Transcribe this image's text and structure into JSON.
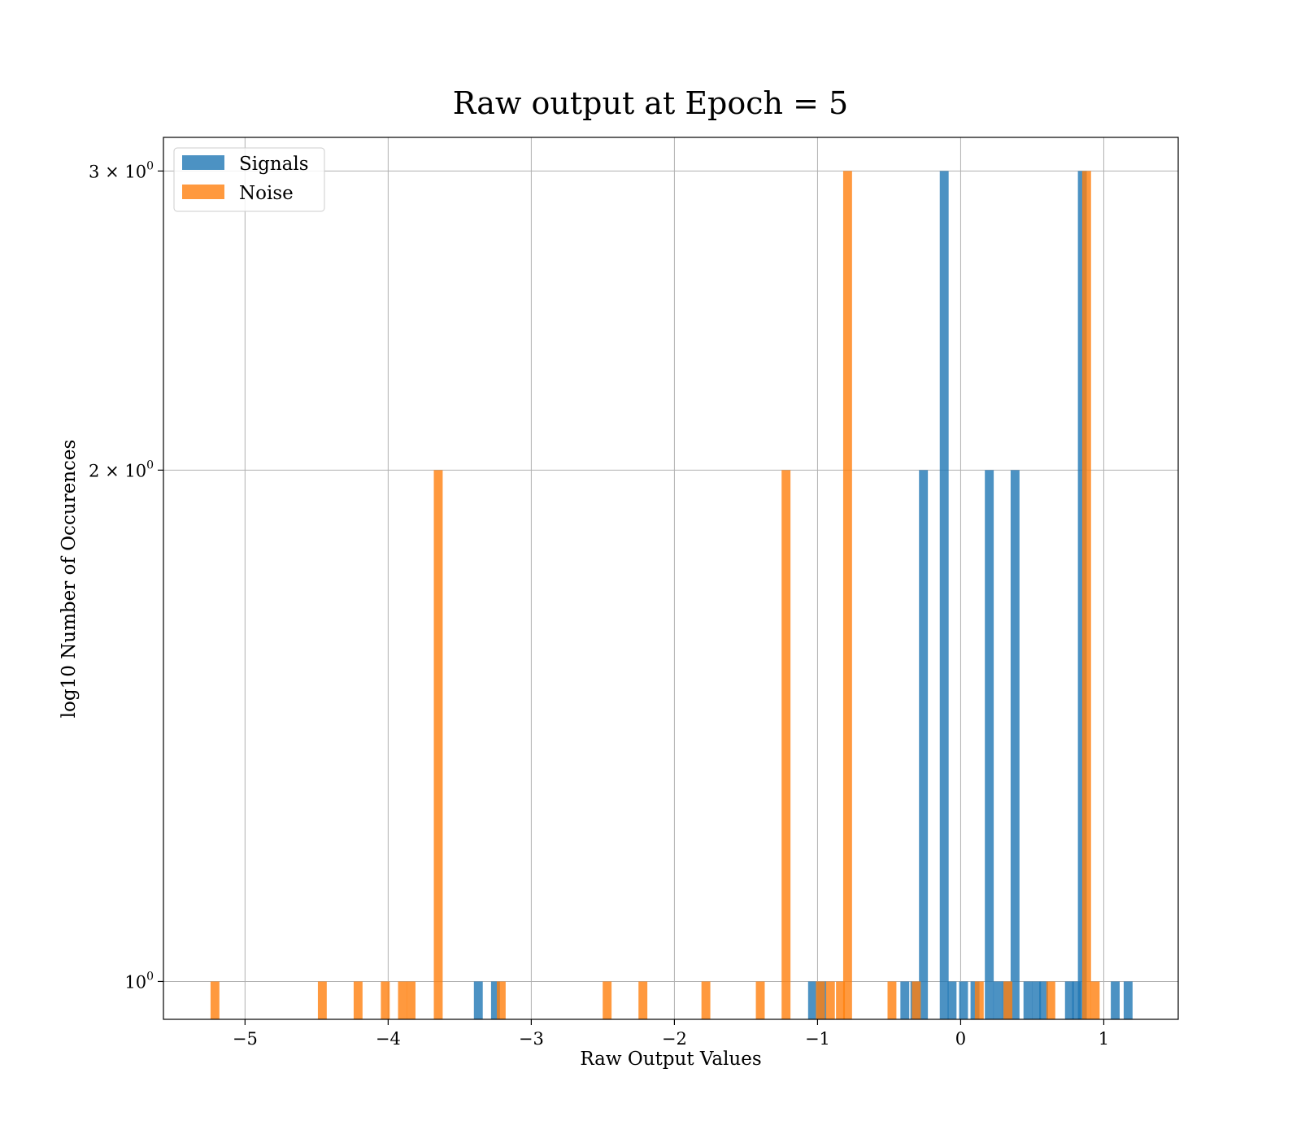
{
  "chart_data": {
    "type": "bar",
    "title": "Raw output at Epoch = 5",
    "xlabel": "Raw Output Values",
    "ylabel": "log10 Number of Occurences",
    "xlim": [
      -5.57,
      1.52
    ],
    "ylim": [
      0.95,
      3.14
    ],
    "y_scale": "log",
    "grid": true,
    "legend_position": "top-left",
    "x_ticks": [
      {
        "value": -5,
        "label": "−5"
      },
      {
        "value": -4,
        "label": "−4"
      },
      {
        "value": -3,
        "label": "−3"
      },
      {
        "value": -2,
        "label": "−2"
      },
      {
        "value": -1,
        "label": "−1"
      },
      {
        "value": 0,
        "label": "0"
      },
      {
        "value": 1,
        "label": "1"
      }
    ],
    "y_ticks": [
      {
        "value": 1,
        "base": "10",
        "exp": "0"
      },
      {
        "value": 2,
        "base": "2 × 10",
        "exp": "0"
      },
      {
        "value": 3,
        "base": "3 × 10",
        "exp": "0"
      }
    ],
    "bin_width": 0.062,
    "series": [
      {
        "name": "Signals",
        "color": "#1f77b4",
        "bins": [
          {
            "x": -1.035,
            "y": 1
          },
          {
            "x": -0.97,
            "y": 1
          },
          {
            "x": -0.39,
            "y": 1
          },
          {
            "x": -0.32,
            "y": 1
          },
          {
            "x": -0.26,
            "y": 2
          },
          {
            "x": -0.115,
            "y": 3
          },
          {
            "x": -0.06,
            "y": 1
          },
          {
            "x": 0.02,
            "y": 1
          },
          {
            "x": 0.1,
            "y": 1
          },
          {
            "x": 0.2,
            "y": 2
          },
          {
            "x": 0.26,
            "y": 1
          },
          {
            "x": 0.32,
            "y": 1
          },
          {
            "x": 0.38,
            "y": 2
          },
          {
            "x": 0.47,
            "y": 1
          },
          {
            "x": 0.53,
            "y": 1
          },
          {
            "x": 0.58,
            "y": 1
          },
          {
            "x": 0.76,
            "y": 1
          },
          {
            "x": 0.81,
            "y": 1
          },
          {
            "x": 0.85,
            "y": 3
          },
          {
            "x": 1.08,
            "y": 1
          },
          {
            "x": 1.17,
            "y": 1
          },
          {
            "x": -3.37,
            "y": 1
          },
          {
            "x": -3.25,
            "y": 1
          }
        ]
      },
      {
        "name": "Noise",
        "color": "#ff7f0e",
        "bins": [
          {
            "x": -5.21,
            "y": 1
          },
          {
            "x": -4.46,
            "y": 1
          },
          {
            "x": -4.21,
            "y": 1
          },
          {
            "x": -4.02,
            "y": 1
          },
          {
            "x": -3.9,
            "y": 1
          },
          {
            "x": -3.84,
            "y": 1
          },
          {
            "x": -3.65,
            "y": 2
          },
          {
            "x": -3.21,
            "y": 1
          },
          {
            "x": -2.47,
            "y": 1
          },
          {
            "x": -2.22,
            "y": 1
          },
          {
            "x": -1.78,
            "y": 1
          },
          {
            "x": -1.4,
            "y": 1
          },
          {
            "x": -1.22,
            "y": 2
          },
          {
            "x": -0.98,
            "y": 1
          },
          {
            "x": -0.91,
            "y": 1
          },
          {
            "x": -0.84,
            "y": 1
          },
          {
            "x": -0.79,
            "y": 3
          },
          {
            "x": -0.48,
            "y": 1
          },
          {
            "x": -0.31,
            "y": 1
          },
          {
            "x": 0.13,
            "y": 1
          },
          {
            "x": 0.33,
            "y": 1
          },
          {
            "x": 0.63,
            "y": 1
          },
          {
            "x": 0.88,
            "y": 3
          },
          {
            "x": 0.94,
            "y": 1
          }
        ]
      }
    ]
  }
}
